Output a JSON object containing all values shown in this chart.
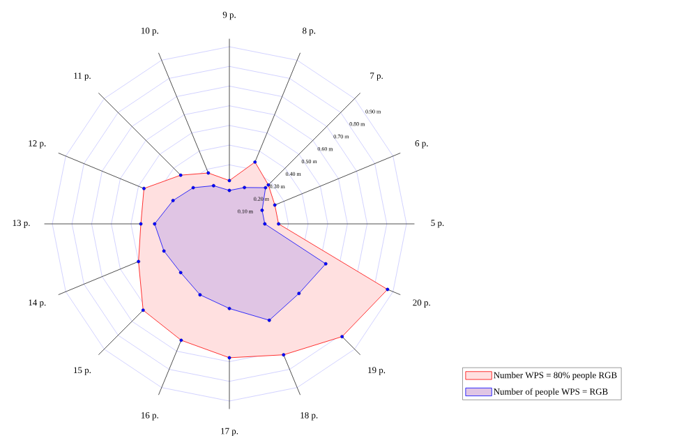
{
  "chart_data": {
    "type": "radar",
    "categories": [
      "9 p.",
      "8 p.",
      "7 p.",
      "6 p.",
      "5 p.",
      "20 p.",
      "19 p.",
      "18 p.",
      "17 p.",
      "16 p.",
      "15 p.",
      "14 p.",
      "13 p.",
      "12 p.",
      "11 p.",
      "10 p."
    ],
    "ylim": [
      0,
      0.9
    ],
    "yticks": [
      {
        "value": 0.1,
        "label": "0.10 m"
      },
      {
        "value": 0.2,
        "label": "0.20 m"
      },
      {
        "value": 0.3,
        "label": "0.30 m"
      },
      {
        "value": 0.4,
        "label": "0.40 m"
      },
      {
        "value": 0.5,
        "label": "0.50 m"
      },
      {
        "value": 0.6,
        "label": "0.60 m"
      },
      {
        "value": 0.7,
        "label": "0.70 m"
      },
      {
        "value": 0.8,
        "label": "0.80 m"
      },
      {
        "value": 0.9,
        "label": "0.90 m"
      }
    ],
    "grid": true,
    "legend": "bottom right",
    "marker": "circle",
    "series": [
      {
        "name": "Number WPS = 80% people RGB",
        "color": "#ff0000",
        "values": [
          0.22,
          0.34,
          0.28,
          0.25,
          0.25,
          0.87,
          0.81,
          0.72,
          0.68,
          0.64,
          0.62,
          0.5,
          0.45,
          0.47,
          0.35,
          0.28
        ]
      },
      {
        "name": "Number of people WPS = RGB",
        "color": "#0000ff",
        "values": [
          0.17,
          0.2,
          0.26,
          0.18,
          0.18,
          0.53,
          0.5,
          0.53,
          0.43,
          0.39,
          0.35,
          0.36,
          0.38,
          0.31,
          0.26,
          0.21
        ]
      }
    ]
  }
}
